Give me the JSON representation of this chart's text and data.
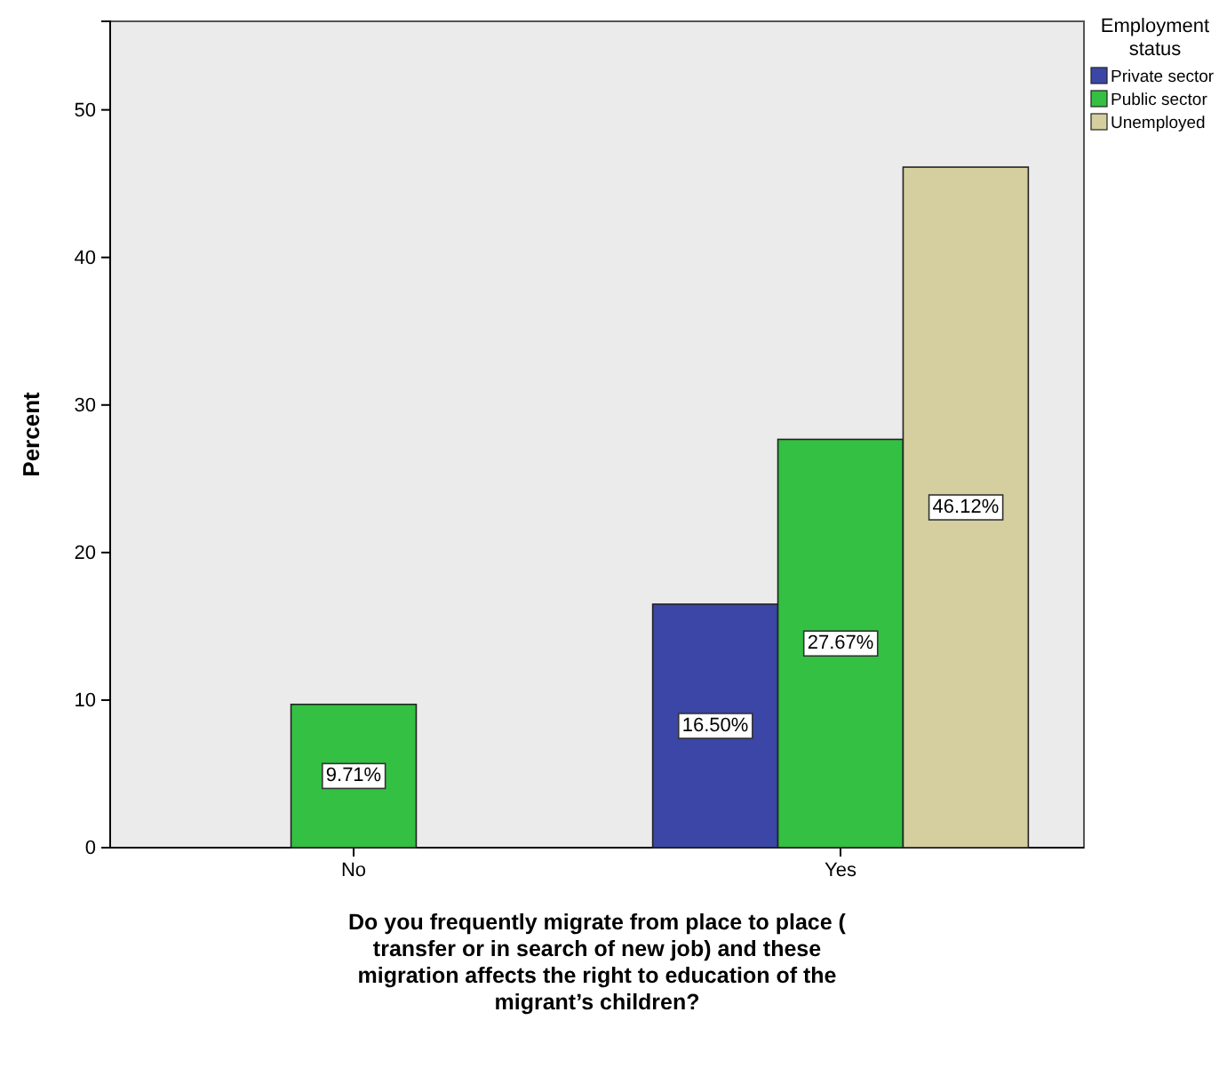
{
  "chart_data": {
    "type": "bar",
    "xlabel": "Do you frequently migrate from place to place ( transfer or in search of new job) and these migration affects the right to education of the migrant’s children?",
    "ylabel": "Percent",
    "legend_title": "Employment status",
    "categories": [
      "No",
      "Yes"
    ],
    "series": [
      {
        "name": "Private sector",
        "color": "#3b46a6",
        "values": [
          null,
          16.5
        ],
        "value_labels": [
          null,
          "16.50%"
        ]
      },
      {
        "name": "Public sector",
        "color": "#33c043",
        "values": [
          9.71,
          27.67
        ],
        "value_labels": [
          "9.71%",
          "27.67%"
        ]
      },
      {
        "name": "Unemployed",
        "color": "#d5cf9f",
        "values": [
          null,
          46.12
        ],
        "value_labels": [
          null,
          "46.12%"
        ]
      }
    ],
    "ylim": [
      0,
      56
    ],
    "yticks": [
      0,
      10,
      20,
      30,
      40,
      50
    ],
    "grid": false,
    "legend": "top right"
  }
}
